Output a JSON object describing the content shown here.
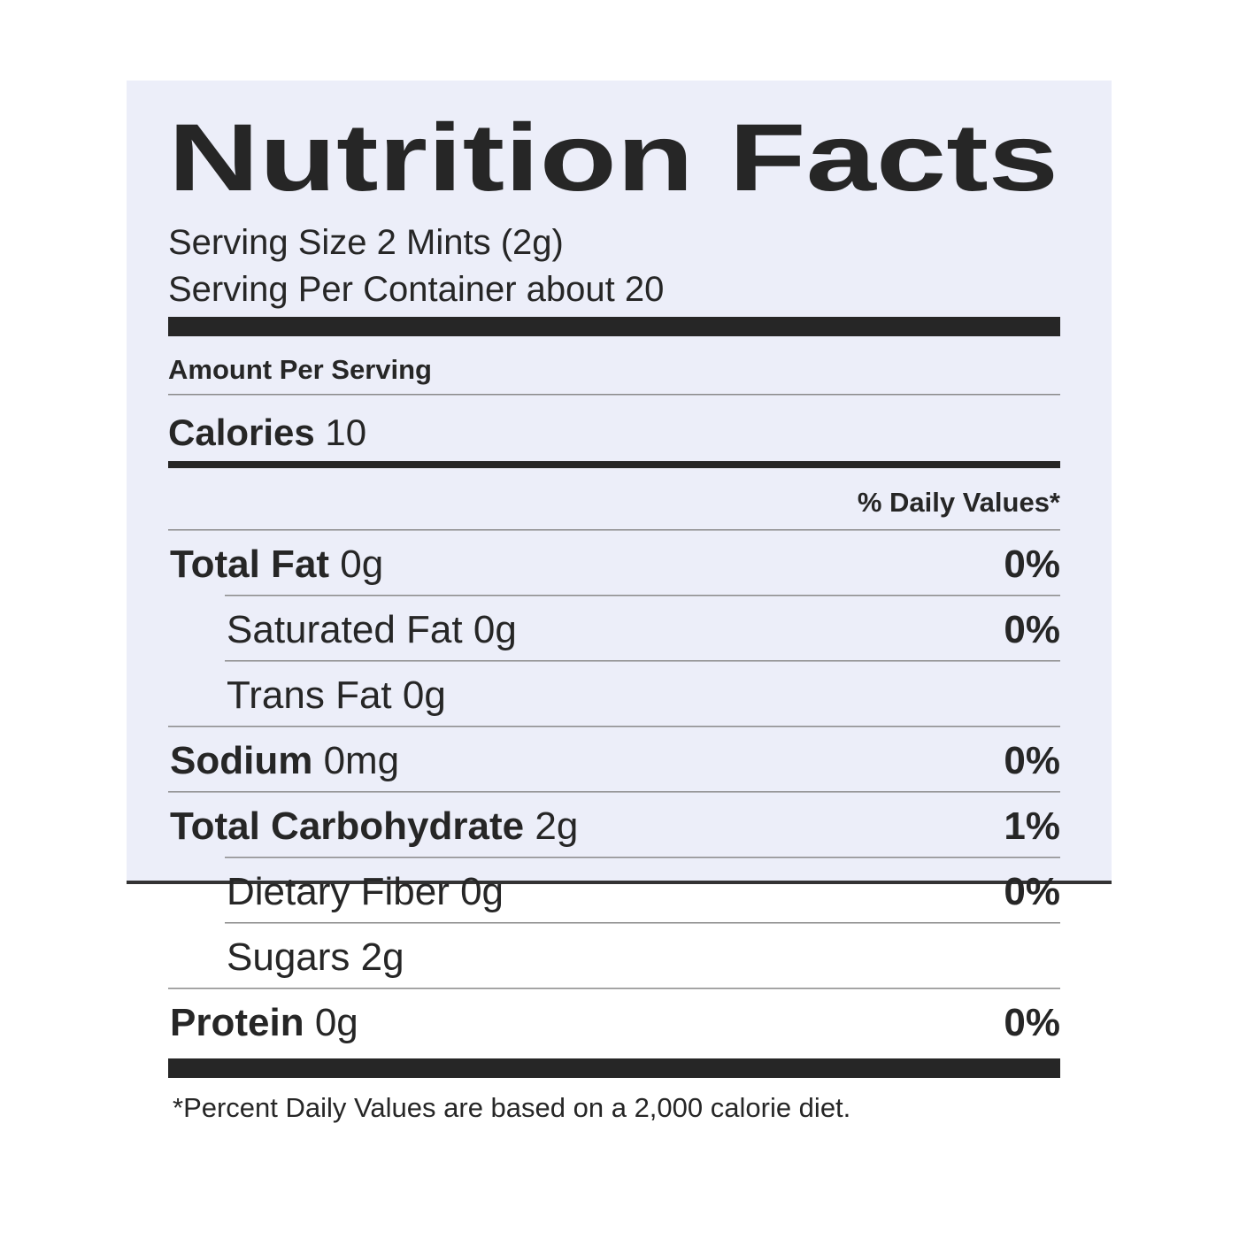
{
  "label": {
    "title": "Nutrition Facts",
    "serving_size": "Serving Size 2 Mints  (2g)",
    "servings_per_container": "Serving Per Container about 20",
    "amount_per_serving": "Amount Per Serving",
    "calories": {
      "name": "Calories",
      "amount": "10"
    },
    "daily_values_header": "% Daily Values*",
    "nutrients": [
      {
        "name": "Total Fat",
        "amount": "0g",
        "dv": "0%",
        "sub": [
          {
            "name": "Saturated Fat",
            "amount": "0g",
            "dv": "0%"
          },
          {
            "name": "Trans Fat",
            "amount": "0g"
          }
        ]
      },
      {
        "name": "Sodium",
        "amount": "0mg",
        "dv": "0%"
      },
      {
        "name": "Total Carbohydrate",
        "amount": "2g",
        "dv": "1%",
        "sub": [
          {
            "name": "Dietary Fiber",
            "amount": "0g",
            "dv": "0%"
          },
          {
            "name": "Sugars",
            "amount": "2g"
          }
        ]
      },
      {
        "name": "Protein",
        "amount": "0g",
        "dv": "0%"
      }
    ],
    "footnote": "*Percent Daily Values are based on a 2,000 calorie diet."
  }
}
